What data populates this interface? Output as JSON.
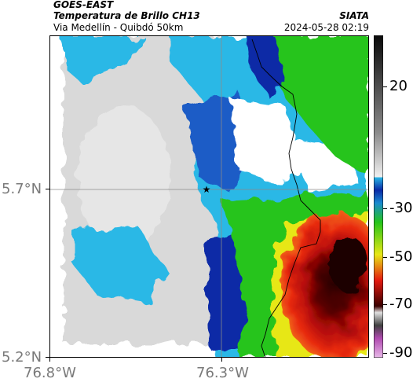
{
  "header": {
    "satellite": "GOES-EAST",
    "product": "Temperatura de Brillo CH13",
    "route": "Via Medellín - Quibdó 50km",
    "agency": "SIATA",
    "datetime": "2024-05-28 02:19"
  },
  "map": {
    "lat_ticks": [
      "5.7°N",
      "5.2°N"
    ],
    "lon_ticks": [
      "76.8°W",
      "76.3°W"
    ],
    "crosshair": {
      "lat": 5.7,
      "lon": -76.3
    },
    "marker": {
      "symbol": "★",
      "name": "station-marker"
    }
  },
  "colorbar": {
    "ticks": [
      "20",
      "-30",
      "-50",
      "-70",
      "-90"
    ],
    "colors": {
      "warm_top": "#1a1a1a",
      "warm_mid": "#bdbdbd",
      "cyan": "#29b8e6",
      "blue": "#0a2aa6",
      "green": "#25c41a",
      "yellow": "#e7e716",
      "red": "#e41a10",
      "dark": "#3a0000",
      "magenta": "#b04ab0"
    }
  }
}
